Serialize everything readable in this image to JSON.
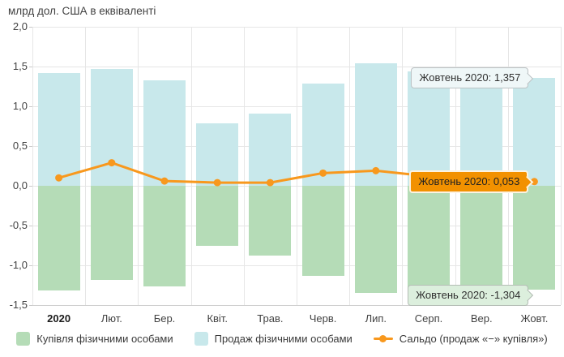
{
  "title": "млрд дол. США в еквіваленті",
  "colors": {
    "buy": "#b5dcb7",
    "sale": "#c8e8eb",
    "saldo": "#f8981d",
    "saldo_tooltip_bg": "#f29100",
    "grid": "#e6e6e6",
    "axis_text": "#424242"
  },
  "chart_data": {
    "type": "bar",
    "subtype": "positive-negative bars with line overlay",
    "title": "млрд дол. США в еквіваленті",
    "categories": [
      "2020",
      "Лют.",
      "Бер.",
      "Квіт.",
      "Трав.",
      "Черв.",
      "Лип.",
      "Серп.",
      "Вер.",
      "Жовт."
    ],
    "series": [
      {
        "name": "Купівля фізичними особами",
        "type": "bar",
        "color": "#b5dcb7",
        "values": [
          -1.32,
          -1.18,
          -1.27,
          -0.75,
          -0.88,
          -1.13,
          -1.35,
          -1.32,
          -1.35,
          -1.304
        ]
      },
      {
        "name": "Продаж фізичними особами",
        "type": "bar",
        "color": "#c8e8eb",
        "values": [
          1.42,
          1.47,
          1.33,
          0.79,
          0.91,
          1.29,
          1.54,
          1.44,
          1.47,
          1.357
        ]
      },
      {
        "name": "Сальдо (продаж «−» купівля»)",
        "type": "line",
        "color": "#f8981d",
        "values": [
          0.1,
          0.29,
          0.06,
          0.04,
          0.04,
          0.16,
          0.19,
          0.12,
          0.12,
          0.053
        ]
      }
    ],
    "ylim": [
      -1.5,
      2.0
    ],
    "ytick_values": [
      2.0,
      1.5,
      1.0,
      0.5,
      0.0,
      -0.5,
      -1.0,
      -1.5
    ],
    "ytick_labels": [
      "2,0",
      "1,5",
      "1,0",
      "0,5",
      "0,0",
      "-0,5",
      "-1,0",
      "-1,5"
    ],
    "grid": true,
    "legend_position": "bottom"
  },
  "tooltips": {
    "sale": {
      "text": "Жовтень 2020: 1,357",
      "value": 1.357
    },
    "saldo": {
      "text": "Жовтень 2020: 0,053",
      "value": 0.053
    },
    "buy": {
      "text": "Жовтень 2020: -1,304",
      "value": -1.304
    }
  }
}
